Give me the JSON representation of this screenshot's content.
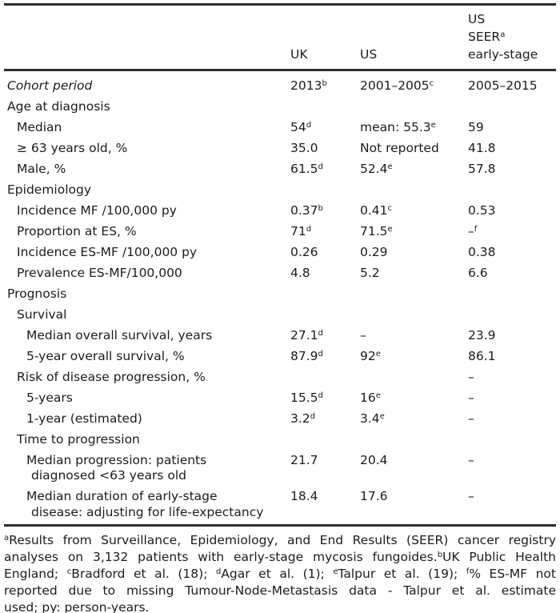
{
  "page": {
    "background": "#ffffff",
    "text_color": "#1c1c1c",
    "rule_color": "#2e2e2e",
    "bottom_rule_color": "#9a9a9a"
  },
  "table": {
    "header": {
      "uk": "UK",
      "us": "US",
      "seer_lines": [
        [
          {
            "t": "US"
          }
        ],
        [
          {
            "t": "SEER"
          },
          {
            "s": "a"
          }
        ],
        [
          {
            "t": "early-stage"
          }
        ]
      ]
    },
    "rows": [
      {
        "label_lines": [
          "Cohort period"
        ],
        "indent": 0,
        "italic": true,
        "uk": [
          {
            "t": "2013"
          },
          {
            "s": "b"
          }
        ],
        "us": [
          {
            "t": "2001–2005"
          },
          {
            "s": "c"
          }
        ],
        "seer": [
          {
            "t": "2005–2015"
          }
        ]
      },
      {
        "label_lines": [
          "Age at diagnosis"
        ],
        "indent": 0
      },
      {
        "label_lines": [
          "Median"
        ],
        "indent": 1,
        "uk": [
          {
            "t": "54"
          },
          {
            "s": "d"
          }
        ],
        "us": [
          {
            "t": "mean: 55.3"
          },
          {
            "s": "e"
          }
        ],
        "seer": [
          {
            "t": "59"
          }
        ]
      },
      {
        "label_lines": [
          "≥ 63 years old, %"
        ],
        "indent": 1,
        "uk": [
          {
            "t": "35.0"
          }
        ],
        "us": [
          {
            "t": "Not reported"
          }
        ],
        "seer": [
          {
            "t": "41.8"
          }
        ]
      },
      {
        "label_lines": [
          "Male, %"
        ],
        "indent": 1,
        "uk": [
          {
            "t": "61.5"
          },
          {
            "s": "d"
          }
        ],
        "us": [
          {
            "t": "52.4"
          },
          {
            "s": "e"
          }
        ],
        "seer": [
          {
            "t": "57.8"
          }
        ]
      },
      {
        "label_lines": [
          "Epidemiology"
        ],
        "indent": 0
      },
      {
        "label_lines": [
          "Incidence MF /100,000 py"
        ],
        "indent": 1,
        "uk": [
          {
            "t": "0.37"
          },
          {
            "s": "b"
          }
        ],
        "us": [
          {
            "t": "0.41"
          },
          {
            "s": "c"
          }
        ],
        "seer": [
          {
            "t": "0.53"
          }
        ]
      },
      {
        "label_lines": [
          "Proportion at ES, %"
        ],
        "indent": 1,
        "uk": [
          {
            "t": "71"
          },
          {
            "s": "d"
          }
        ],
        "us": [
          {
            "t": "71.5"
          },
          {
            "s": "e"
          }
        ],
        "seer": [
          {
            "t": "–"
          },
          {
            "s": "f"
          }
        ]
      },
      {
        "label_lines": [
          "Incidence ES-MF /100,000 py"
        ],
        "indent": 1,
        "uk": [
          {
            "t": "0.26"
          }
        ],
        "us": [
          {
            "t": "0.29"
          }
        ],
        "seer": [
          {
            "t": "0.38"
          }
        ]
      },
      {
        "label_lines": [
          "Prevalence ES-MF/100,000"
        ],
        "indent": 1,
        "uk": [
          {
            "t": "4.8"
          }
        ],
        "us": [
          {
            "t": "5.2"
          }
        ],
        "seer": [
          {
            "t": "6.6"
          }
        ]
      },
      {
        "label_lines": [
          "Prognosis"
        ],
        "indent": 0
      },
      {
        "label_lines": [
          "Survival"
        ],
        "indent": 1
      },
      {
        "label_lines": [
          "Median overall survival, years"
        ],
        "indent": 2,
        "uk": [
          {
            "t": "27.1"
          },
          {
            "s": "d"
          }
        ],
        "us": [
          {
            "t": "–"
          }
        ],
        "seer": [
          {
            "t": "23.9"
          }
        ]
      },
      {
        "label_lines": [
          "5-year overall survival, %"
        ],
        "indent": 2,
        "uk": [
          {
            "t": "87.9"
          },
          {
            "s": "d"
          }
        ],
        "us": [
          {
            "t": "92"
          },
          {
            "s": "e"
          }
        ],
        "seer": [
          {
            "t": "86.1"
          }
        ]
      },
      {
        "label_lines": [
          "Risk of disease progression, %"
        ],
        "indent": 1,
        "seer": [
          {
            "t": "–"
          }
        ]
      },
      {
        "label_lines": [
          "5-years"
        ],
        "indent": 2,
        "uk": [
          {
            "t": "15.5"
          },
          {
            "s": "d"
          }
        ],
        "us": [
          {
            "t": "16"
          },
          {
            "s": "e"
          }
        ],
        "seer": [
          {
            "t": "–"
          }
        ]
      },
      {
        "label_lines": [
          "1-year (estimated)"
        ],
        "indent": 2,
        "uk": [
          {
            "t": "3.2"
          },
          {
            "s": "d"
          }
        ],
        "us": [
          {
            "t": "3.4"
          },
          {
            "s": "e"
          }
        ],
        "seer": [
          {
            "t": "–"
          }
        ]
      },
      {
        "label_lines": [
          "Time to progression"
        ],
        "indent": 1
      },
      {
        "label_lines": [
          "Median progression: patients",
          "diagnosed <63 years old"
        ],
        "indent": 2,
        "uk": [
          {
            "t": "21.7"
          }
        ],
        "us": [
          {
            "t": "20.4"
          }
        ],
        "seer": [
          {
            "t": "–"
          }
        ]
      },
      {
        "label_lines": [
          "Median duration of early-stage",
          "disease: adjusting for life-expectancy"
        ],
        "indent": 2,
        "uk": [
          {
            "t": "18.4"
          }
        ],
        "us": [
          {
            "t": "17.6"
          }
        ],
        "seer": [
          {
            "t": "–"
          }
        ]
      }
    ]
  },
  "footnotes": {
    "lines": [
      [
        {
          "s": "a"
        },
        {
          "t": "Results from Surveillance, Epidemiology, and End Results (SEER) cancer registry"
        }
      ],
      [
        {
          "t": "analyses on 3,132 patients with early-stage mycosis fungoides."
        },
        {
          "s": "b"
        },
        {
          "t": "UK Public Health"
        }
      ],
      [
        {
          "t": "England; "
        },
        {
          "s": "c"
        },
        {
          "t": "Bradford et al. (18); "
        },
        {
          "s": "d"
        },
        {
          "t": "Agar et al. (1); "
        },
        {
          "s": "e"
        },
        {
          "t": "Talpur et al. (19); "
        },
        {
          "s": "f"
        },
        {
          "t": "% ES-MF not"
        }
      ],
      [
        {
          "t": "reported due to missing Tumour-Node-Metastasis data - Talpur et al. estimate"
        }
      ],
      [
        {
          "t": "used; py: person-years."
        }
      ]
    ]
  }
}
